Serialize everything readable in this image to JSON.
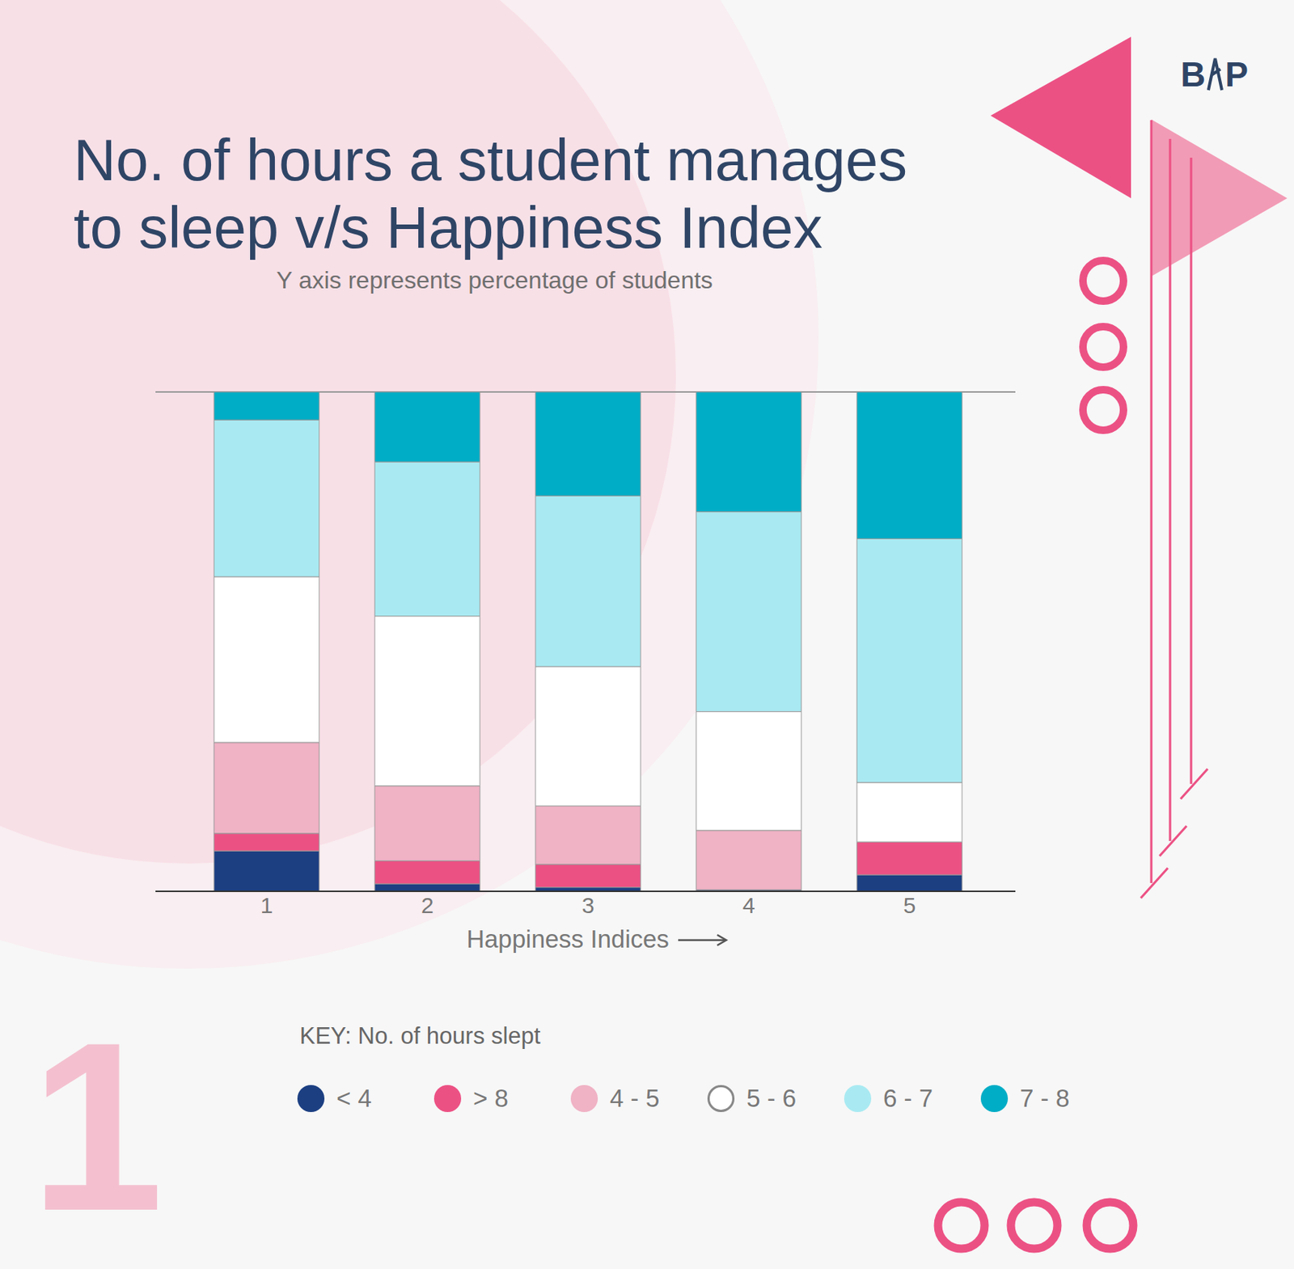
{
  "chart_data": {
    "type": "bar",
    "title": "No. of hours a student manages to sleep v/s Happiness Index",
    "subtitle": "Y axis represents percentage of students",
    "x_label": "Happiness Indices",
    "legend_title": "KEY: No. of hours slept",
    "logo": [
      "B",
      "P"
    ],
    "page_number": "1",
    "categories": [
      "1",
      "2",
      "3",
      "4",
      "5"
    ],
    "series": [
      {
        "name": "< 4",
        "color": "#1c3f82",
        "values": [
          8.1,
          1.5,
          0.8,
          0.3,
          3.3
        ]
      },
      {
        "name": "> 8",
        "color": "#ec5184",
        "values": [
          3.5,
          4.6,
          4.6,
          0,
          6.6
        ]
      },
      {
        "name": "4 - 5",
        "color": "#f0b2c5",
        "values": [
          18.2,
          15.0,
          11.7,
          11.9,
          0
        ]
      },
      {
        "name": "5 - 6",
        "color": "#ffffff",
        "values": [
          33.2,
          34.0,
          27.9,
          23.8,
          11.9
        ]
      },
      {
        "name": "6 - 7",
        "color": "#a9eaf2",
        "values": [
          31.4,
          30.9,
          34.2,
          40.0,
          48.8
        ]
      },
      {
        "name": "7 - 8",
        "color": "#00adc6",
        "values": [
          5.6,
          14.0,
          20.8,
          24.0,
          29.4
        ]
      }
    ],
    "ylim": [
      0,
      100
    ],
    "yticks": [
      0,
      25,
      50,
      75,
      100
    ],
    "stacked": true,
    "grid": true,
    "legend": "bottom",
    "tick_labels": "x"
  }
}
